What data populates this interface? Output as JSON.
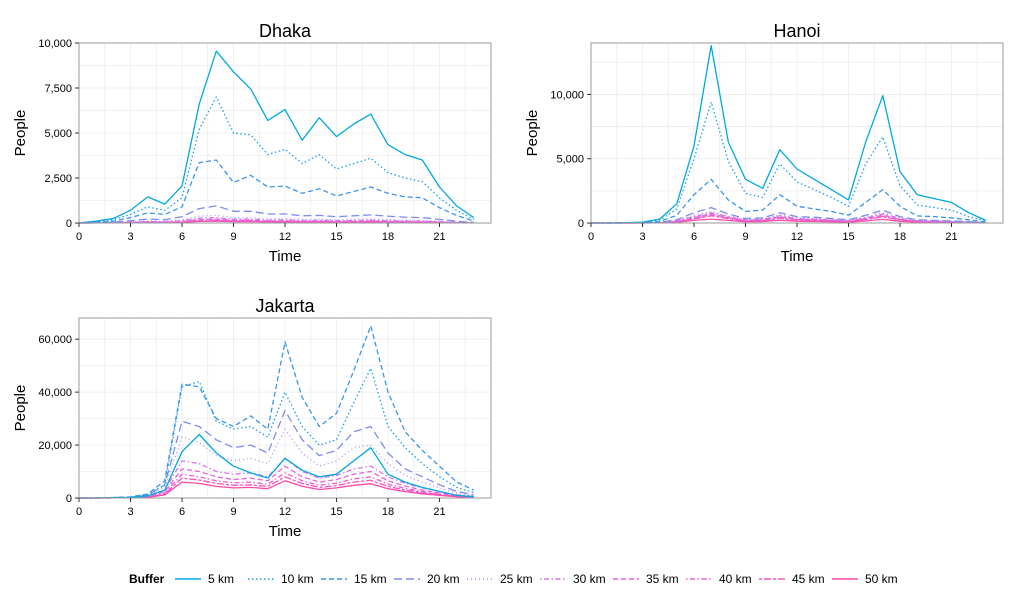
{
  "chart_data": [
    {
      "type": "line",
      "title": "Dhaka",
      "xlabel": "Time",
      "ylabel": "People",
      "xlim": [
        0,
        24
      ],
      "ylim": [
        0,
        10000
      ],
      "xticks": [
        0,
        3,
        6,
        9,
        12,
        15,
        18,
        21
      ],
      "xtick_labels": [
        "0",
        "3",
        "6",
        "9",
        "12",
        "15",
        "18",
        "21"
      ],
      "yticks": [
        0,
        2500,
        5000,
        7500,
        10000
      ],
      "ytick_labels": [
        "0",
        "2,500",
        "5,000",
        "7,500",
        "10,000"
      ],
      "grid": true,
      "x": [
        0,
        1,
        2,
        3,
        4,
        5,
        6,
        7,
        8,
        9,
        10,
        11,
        12,
        13,
        14,
        15,
        16,
        17,
        18,
        19,
        20,
        21,
        22,
        23
      ],
      "series": [
        {
          "name": "5 km",
          "values": [
            0,
            100,
            250,
            700,
            1450,
            1050,
            2050,
            6600,
            9550,
            8400,
            7450,
            5700,
            6300,
            4600,
            5850,
            4800,
            5500,
            6050,
            4350,
            3800,
            3500,
            2000,
            950,
            300
          ]
        },
        {
          "name": "10 km",
          "values": [
            0,
            70,
            180,
            480,
            900,
            700,
            1400,
            5200,
            7000,
            5000,
            4900,
            3800,
            4100,
            3300,
            3800,
            3000,
            3300,
            3600,
            2800,
            2500,
            2300,
            1400,
            700,
            200
          ]
        },
        {
          "name": "15 km",
          "values": [
            0,
            40,
            100,
            300,
            560,
            480,
            900,
            3350,
            3500,
            2250,
            2650,
            2000,
            2050,
            1650,
            1900,
            1500,
            1750,
            2000,
            1650,
            1450,
            1400,
            850,
            420,
            100
          ]
        },
        {
          "name": "20 km",
          "values": [
            0,
            20,
            50,
            120,
            220,
            180,
            350,
            800,
            950,
            650,
            650,
            500,
            500,
            400,
            420,
            350,
            400,
            450,
            380,
            320,
            300,
            200,
            100,
            40
          ]
        },
        {
          "name": "25 km",
          "values": [
            0,
            10,
            25,
            60,
            110,
            90,
            170,
            380,
            430,
            300,
            300,
            230,
            240,
            200,
            210,
            180,
            200,
            220,
            190,
            160,
            150,
            100,
            50,
            20
          ]
        },
        {
          "name": "30 km",
          "values": [
            0,
            8,
            20,
            45,
            80,
            65,
            120,
            260,
            300,
            210,
            210,
            160,
            170,
            140,
            150,
            130,
            140,
            160,
            130,
            110,
            100,
            70,
            35,
            15
          ]
        },
        {
          "name": "35 km",
          "values": [
            0,
            6,
            15,
            35,
            60,
            50,
            90,
            180,
            210,
            150,
            150,
            115,
            120,
            100,
            105,
            95,
            100,
            115,
            95,
            80,
            75,
            50,
            25,
            10
          ]
        },
        {
          "name": "40 km",
          "values": [
            0,
            5,
            12,
            28,
            48,
            40,
            70,
            140,
            165,
            120,
            120,
            90,
            95,
            80,
            85,
            75,
            80,
            90,
            75,
            65,
            60,
            40,
            20,
            8
          ]
        },
        {
          "name": "45 km",
          "values": [
            0,
            4,
            10,
            22,
            38,
            32,
            55,
            110,
            130,
            95,
            95,
            72,
            75,
            64,
            68,
            60,
            64,
            72,
            60,
            52,
            48,
            32,
            16,
            6
          ]
        },
        {
          "name": "50 km",
          "values": [
            0,
            3,
            8,
            18,
            30,
            26,
            45,
            90,
            105,
            78,
            78,
            60,
            62,
            52,
            56,
            50,
            52,
            58,
            48,
            42,
            38,
            26,
            13,
            5
          ]
        }
      ]
    },
    {
      "type": "line",
      "title": "Hanoi",
      "xlabel": "Time",
      "ylabel": "People",
      "xlim": [
        0,
        24
      ],
      "ylim": [
        0,
        14000
      ],
      "xticks": [
        0,
        3,
        6,
        9,
        12,
        15,
        18,
        21
      ],
      "xtick_labels": [
        "0",
        "3",
        "6",
        "9",
        "12",
        "15",
        "18",
        "21"
      ],
      "yticks": [
        0,
        5000,
        10000
      ],
      "ytick_labels": [
        "0",
        "5,000",
        "10,000"
      ],
      "grid": true,
      "x": [
        0,
        1,
        2,
        3,
        4,
        5,
        6,
        7,
        8,
        9,
        10,
        11,
        12,
        13,
        14,
        15,
        16,
        17,
        18,
        19,
        20,
        21,
        22,
        23
      ],
      "series": [
        {
          "name": "5 km",
          "values": [
            0,
            0,
            20,
            60,
            300,
            1500,
            6000,
            13800,
            6300,
            3400,
            2700,
            5700,
            4200,
            3400,
            2600,
            1800,
            6300,
            9900,
            4000,
            2200,
            1900,
            1600,
            800,
            200
          ]
        },
        {
          "name": "10 km",
          "values": [
            0,
            0,
            15,
            45,
            220,
            1100,
            5000,
            9400,
            4800,
            2300,
            2000,
            4600,
            3200,
            2600,
            2000,
            1300,
            4600,
            6700,
            2900,
            1400,
            1200,
            1000,
            500,
            150
          ]
        },
        {
          "name": "15 km",
          "values": [
            0,
            0,
            10,
            25,
            120,
            600,
            2200,
            3400,
            1800,
            900,
            1000,
            2200,
            1300,
            1100,
            900,
            600,
            1600,
            2600,
            1300,
            550,
            500,
            400,
            250,
            70
          ]
        },
        {
          "name": "20 km",
          "values": [
            0,
            0,
            5,
            10,
            50,
            250,
            800,
            1200,
            700,
            350,
            400,
            800,
            500,
            450,
            350,
            250,
            600,
            1000,
            500,
            250,
            200,
            160,
            100,
            30
          ]
        },
        {
          "name": "25 km",
          "values": [
            0,
            0,
            4,
            8,
            40,
            200,
            600,
            900,
            550,
            280,
            320,
            650,
            400,
            360,
            280,
            200,
            480,
            800,
            400,
            200,
            160,
            130,
            80,
            25
          ]
        },
        {
          "name": "30 km",
          "values": [
            0,
            0,
            3,
            6,
            30,
            160,
            500,
            800,
            480,
            240,
            280,
            560,
            340,
            300,
            240,
            170,
            400,
            700,
            350,
            170,
            140,
            110,
            70,
            20
          ]
        },
        {
          "name": "35 km",
          "values": [
            0,
            0,
            3,
            5,
            25,
            130,
            420,
            700,
            420,
            200,
            240,
            480,
            290,
            260,
            200,
            150,
            340,
            600,
            300,
            150,
            120,
            95,
            60,
            18
          ]
        },
        {
          "name": "40 km",
          "values": [
            0,
            0,
            2,
            4,
            20,
            110,
            360,
            620,
            380,
            180,
            210,
            420,
            260,
            230,
            180,
            130,
            300,
            530,
            260,
            130,
            105,
            85,
            52,
            15
          ]
        },
        {
          "name": "45 km",
          "values": [
            0,
            0,
            2,
            3,
            17,
            95,
            320,
            560,
            340,
            160,
            190,
            380,
            230,
            205,
            160,
            115,
            270,
            480,
            235,
            115,
            95,
            75,
            46,
            13
          ]
        },
        {
          "name": "50 km",
          "values": [
            0,
            0,
            1,
            2,
            12,
            60,
            200,
            300,
            200,
            100,
            120,
            220,
            140,
            125,
            100,
            70,
            160,
            280,
            140,
            70,
            55,
            45,
            28,
            8
          ]
        }
      ]
    },
    {
      "type": "line",
      "title": "Jakarta",
      "xlabel": "Time",
      "ylabel": "People",
      "xlim": [
        0,
        24
      ],
      "ylim": [
        0,
        68000
      ],
      "xticks": [
        0,
        3,
        6,
        9,
        12,
        15,
        18,
        21
      ],
      "xtick_labels": [
        "0",
        "3",
        "6",
        "9",
        "12",
        "15",
        "18",
        "21"
      ],
      "yticks": [
        0,
        20000,
        40000,
        60000
      ],
      "ytick_labels": [
        "0",
        "20,000",
        "40,000",
        "60,000"
      ],
      "grid": true,
      "x": [
        0,
        1,
        2,
        3,
        4,
        5,
        6,
        7,
        8,
        9,
        10,
        11,
        12,
        13,
        14,
        15,
        16,
        17,
        18,
        19,
        20,
        21,
        22,
        23
      ],
      "series": [
        {
          "name": "5 km",
          "values": [
            0,
            0,
            100,
            200,
            800,
            3000,
            17500,
            24000,
            17000,
            12000,
            9500,
            7500,
            15000,
            10500,
            8000,
            9000,
            14000,
            19000,
            9000,
            6000,
            4000,
            2500,
            1000,
            500
          ]
        },
        {
          "name": "10 km",
          "values": [
            0,
            0,
            150,
            300,
            1200,
            5000,
            42000,
            44000,
            29000,
            26000,
            27000,
            23000,
            40000,
            27000,
            20000,
            22000,
            36000,
            49000,
            27000,
            19000,
            13000,
            8000,
            4000,
            2000
          ]
        },
        {
          "name": "15 km",
          "values": [
            0,
            0,
            200,
            400,
            1500,
            6500,
            43000,
            42000,
            30000,
            27000,
            31000,
            26000,
            59000,
            38000,
            27000,
            32000,
            48000,
            65000,
            40000,
            25000,
            18000,
            12000,
            6000,
            3000
          ]
        },
        {
          "name": "20 km",
          "values": [
            0,
            0,
            150,
            300,
            1100,
            5000,
            29000,
            27000,
            22000,
            19000,
            20000,
            17000,
            33000,
            22000,
            16000,
            18000,
            25000,
            27000,
            17000,
            11000,
            8000,
            5000,
            2500,
            1200
          ]
        },
        {
          "name": "25 km",
          "values": [
            0,
            0,
            120,
            250,
            900,
            4000,
            23000,
            21000,
            16000,
            14000,
            15000,
            13000,
            26000,
            17000,
            12000,
            14000,
            19000,
            20000,
            13000,
            8500,
            6000,
            3800,
            1900,
            900
          ]
        },
        {
          "name": "30 km",
          "values": [
            0,
            0,
            90,
            180,
            700,
            3000,
            14000,
            13000,
            10000,
            9000,
            9500,
            8000,
            15000,
            10000,
            7500,
            8500,
            11000,
            12000,
            8000,
            5500,
            3800,
            2400,
            1200,
            600
          ]
        },
        {
          "name": "35 km",
          "values": [
            0,
            0,
            70,
            140,
            550,
            2400,
            11000,
            10000,
            8000,
            7000,
            7500,
            6500,
            12000,
            8000,
            6000,
            7000,
            9000,
            10000,
            6500,
            4500,
            3000,
            1900,
            950,
            480
          ]
        },
        {
          "name": "40 km",
          "values": [
            0,
            0,
            55,
            110,
            450,
            1900,
            9000,
            8000,
            6500,
            5700,
            6000,
            5200,
            9500,
            6500,
            4800,
            5600,
            7200,
            8000,
            5200,
            3600,
            2400,
            1500,
            760,
            380
          ]
        },
        {
          "name": "45 km",
          "values": [
            0,
            0,
            45,
            90,
            360,
            1500,
            7500,
            6800,
            5500,
            4800,
            5000,
            4400,
            8000,
            5500,
            4000,
            4700,
            6000,
            6700,
            4400,
            3000,
            2000,
            1250,
            640,
            320
          ]
        },
        {
          "name": "50 km",
          "values": [
            0,
            0,
            35,
            70,
            280,
            1200,
            6000,
            5500,
            4400,
            3800,
            4000,
            3500,
            6500,
            4400,
            3200,
            3800,
            4800,
            5400,
            3500,
            2400,
            1600,
            1000,
            500,
            250
          ]
        }
      ]
    }
  ],
  "legend": {
    "title": "Buffer",
    "entries": [
      {
        "label": "5 km",
        "color": "#00a9e0",
        "dash": "solid"
      },
      {
        "label": "10 km",
        "color": "#16a1e8",
        "dash": "dotted"
      },
      {
        "label": "15 km",
        "color": "#3a95f0",
        "dash": "dashed"
      },
      {
        "label": "20 km",
        "color": "#7e8cf0",
        "dash": "longdash"
      },
      {
        "label": "25 km",
        "color": "#b48af0",
        "dash": "dotted-fine"
      },
      {
        "label": "30 km",
        "color": "#d774ec",
        "dash": "dotdash"
      },
      {
        "label": "35 km",
        "color": "#e961dc",
        "dash": "dashed"
      },
      {
        "label": "40 km",
        "color": "#f35ad0",
        "dash": "dotdash"
      },
      {
        "label": "45 km",
        "color": "#f752c2",
        "dash": "twodash"
      },
      {
        "label": "50 km",
        "color": "#fb4aa6",
        "dash": "solid"
      }
    ]
  }
}
